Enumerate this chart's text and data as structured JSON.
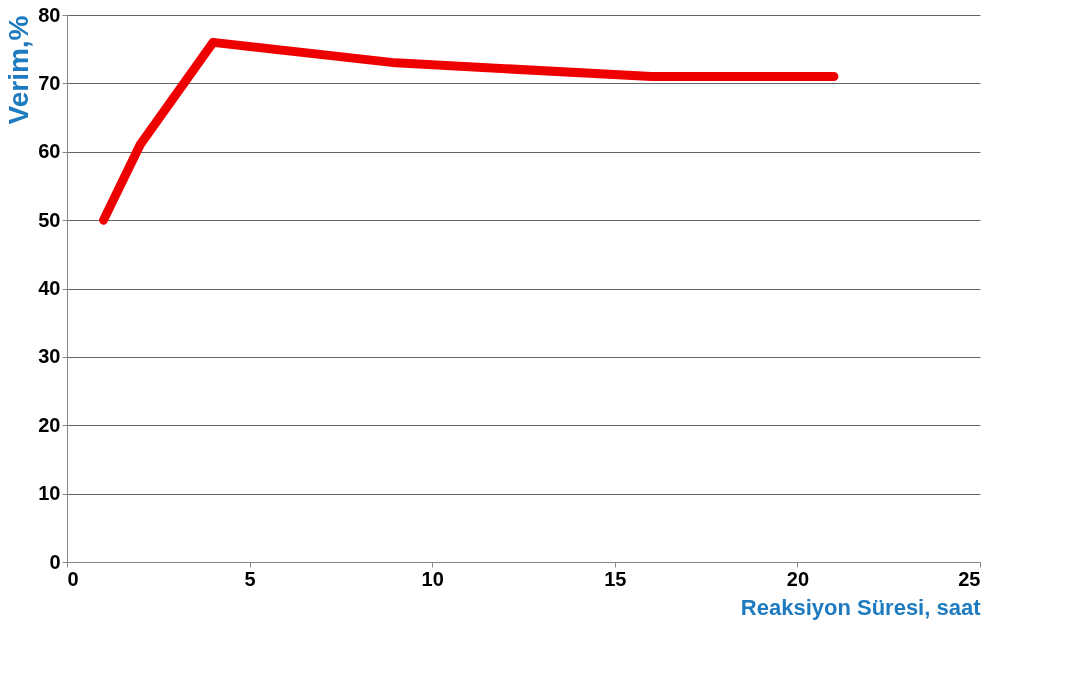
{
  "chart_data": {
    "type": "line",
    "xlabel": "Reaksiyon Süresi, saat",
    "ylabel": "Verim,%",
    "x": [
      1,
      2,
      4,
      9,
      16,
      21
    ],
    "series": [
      {
        "color": "#ee0000",
        "values": [
          50,
          61,
          76,
          73,
          71,
          71
        ]
      }
    ],
    "xlim": [
      0,
      25
    ],
    "xticks": [
      0,
      5,
      10,
      15,
      20,
      25
    ],
    "ylim": [
      0,
      80
    ],
    "yticks": [
      0,
      10,
      20,
      30,
      40,
      50,
      60,
      70,
      80
    ],
    "grid": "y",
    "marker": "none",
    "line_style": "solid"
  }
}
